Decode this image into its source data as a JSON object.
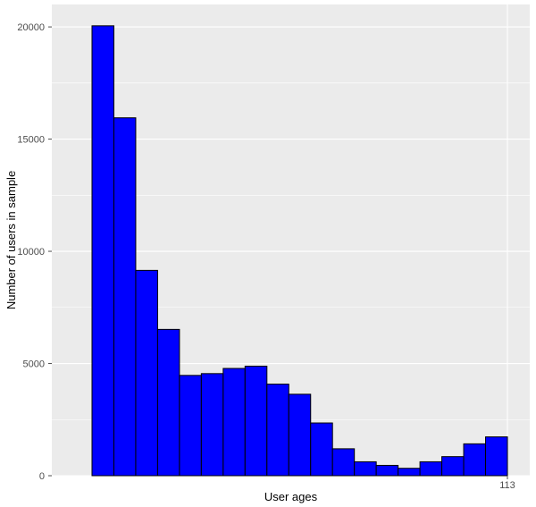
{
  "chart_data": {
    "type": "bar",
    "title": "",
    "xlabel": "User ages",
    "ylabel": "Number of users in sample",
    "x_tick_labels": [
      "113"
    ],
    "y_ticks": [
      0,
      5000,
      10000,
      15000,
      20000
    ],
    "ylim": [
      0,
      21000
    ],
    "grid": true,
    "colors": {
      "panel_background": "#ebebeb",
      "grid": "#ffffff",
      "bar_fill": "#0000ff",
      "bar_stroke": "#000000"
    },
    "bins": [
      {
        "value": 20050
      },
      {
        "value": 15950
      },
      {
        "value": 9150
      },
      {
        "value": 6520
      },
      {
        "value": 4470
      },
      {
        "value": 4550
      },
      {
        "value": 4780
      },
      {
        "value": 4880
      },
      {
        "value": 4080
      },
      {
        "value": 3630
      },
      {
        "value": 2350
      },
      {
        "value": 1200
      },
      {
        "value": 620
      },
      {
        "value": 460
      },
      {
        "value": 330
      },
      {
        "value": 620
      },
      {
        "value": 850
      },
      {
        "value": 1420
      },
      {
        "value": 1730
      }
    ]
  }
}
